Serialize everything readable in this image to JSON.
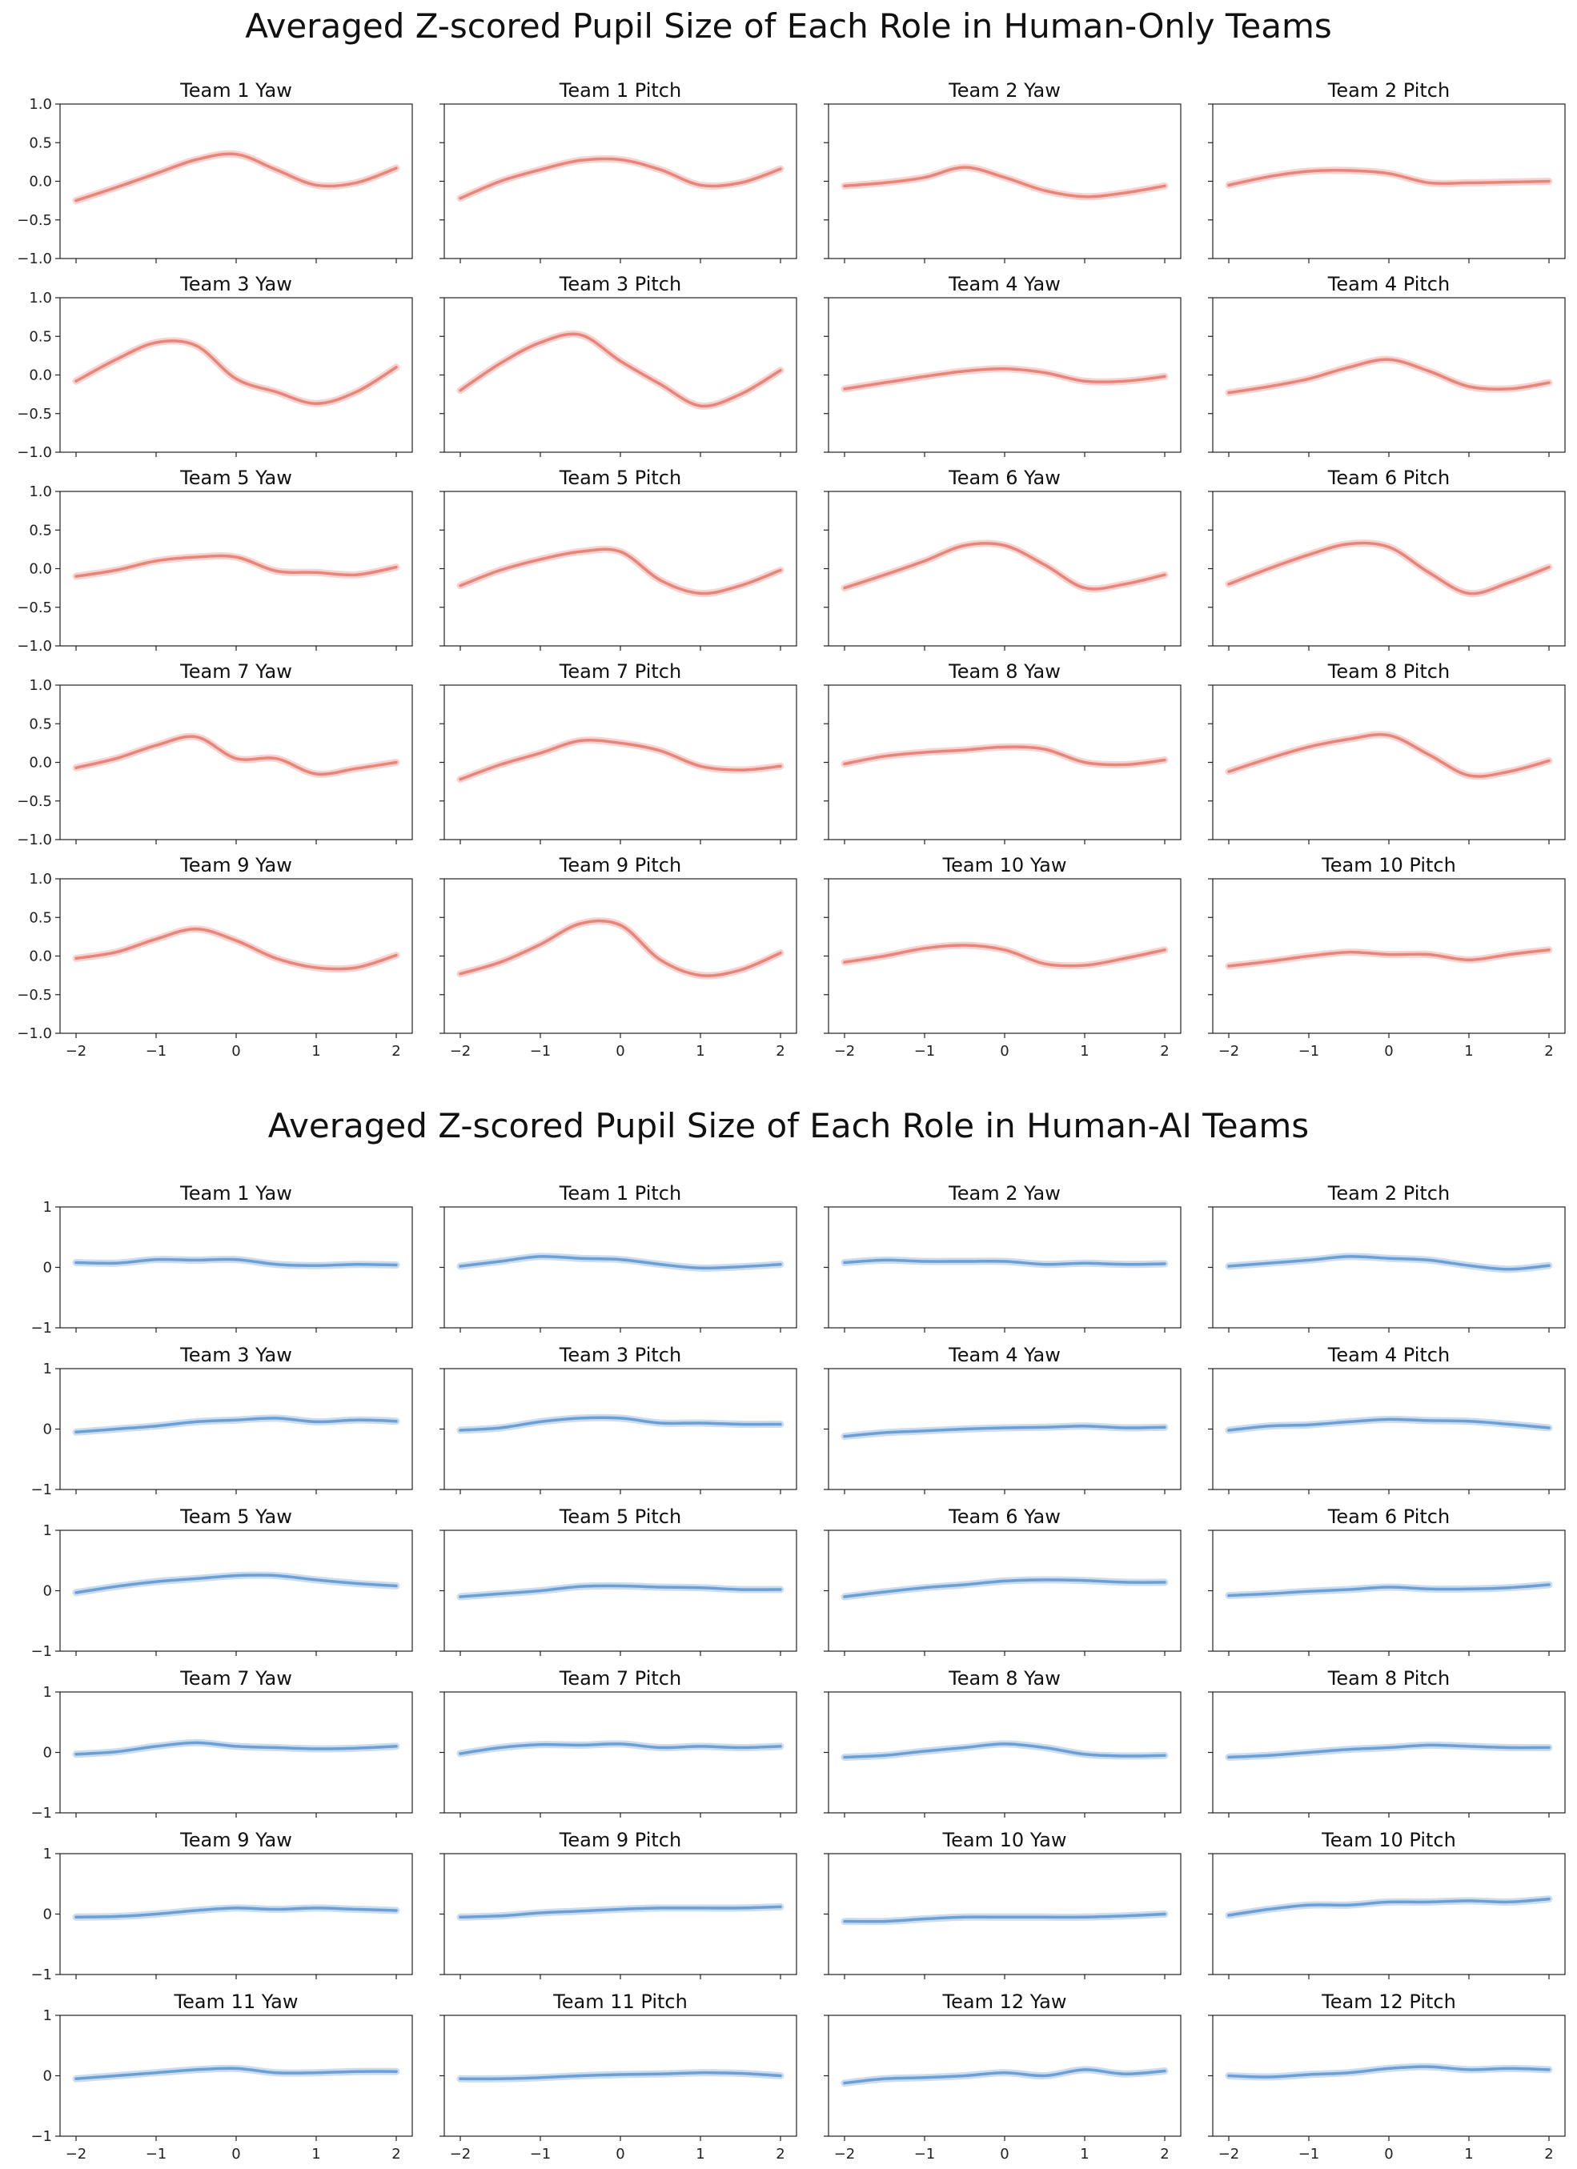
{
  "figure_titles": {
    "human_only": "Averaged Z-scored Pupil Size of Each Role in Human-Only Teams",
    "human_ai": "Averaged Z-scored Pupil Size of Each Role in Human-AI Teams"
  },
  "colors": {
    "human_only": "#e8857a",
    "human_ai": "#6c9fd4"
  },
  "chart_data": [
    {
      "type": "line",
      "group": "Human-Only Teams",
      "title": "Averaged Z-scored Pupil Size of Each Role in Human-Only Teams",
      "xlim": [
        -2.2,
        2.2
      ],
      "ylim": [
        -1.0,
        1.0
      ],
      "xticks": [
        -2,
        -1,
        0,
        1,
        2
      ],
      "xtick_labels": [
        "−2",
        "−1",
        "0",
        "1",
        "2"
      ],
      "yticks": [
        -1.0,
        -0.5,
        0.0,
        0.5,
        1.0
      ],
      "ytick_labels": [
        "−1.0",
        "−0.5",
        "0.0",
        "0.5",
        "1.0"
      ],
      "x": [
        -2.0,
        -1.5,
        -1.0,
        -0.5,
        0.0,
        0.5,
        1.0,
        1.5,
        2.0
      ],
      "panels": [
        {
          "title": "Team 1 Yaw",
          "values": [
            -0.25,
            -0.08,
            0.1,
            0.28,
            0.35,
            0.15,
            -0.05,
            -0.02,
            0.17
          ]
        },
        {
          "title": "Team 1 Pitch",
          "values": [
            -0.22,
            0.0,
            0.15,
            0.27,
            0.28,
            0.15,
            -0.05,
            -0.02,
            0.16
          ]
        },
        {
          "title": "Team 2 Yaw",
          "values": [
            -0.06,
            -0.02,
            0.05,
            0.18,
            0.05,
            -0.12,
            -0.2,
            -0.15,
            -0.06
          ]
        },
        {
          "title": "Team 2 Pitch",
          "values": [
            -0.05,
            0.06,
            0.13,
            0.14,
            0.1,
            -0.02,
            -0.02,
            -0.01,
            0.0
          ]
        },
        {
          "title": "Team 3 Yaw",
          "values": [
            -0.08,
            0.2,
            0.42,
            0.38,
            -0.05,
            -0.22,
            -0.37,
            -0.22,
            0.1
          ]
        },
        {
          "title": "Team 3 Pitch",
          "values": [
            -0.2,
            0.15,
            0.42,
            0.52,
            0.18,
            -0.12,
            -0.4,
            -0.25,
            0.06
          ]
        },
        {
          "title": "Team 4 Yaw",
          "values": [
            -0.18,
            -0.1,
            -0.02,
            0.05,
            0.08,
            0.03,
            -0.08,
            -0.08,
            -0.02
          ]
        },
        {
          "title": "Team 4 Pitch",
          "values": [
            -0.23,
            -0.15,
            -0.05,
            0.1,
            0.2,
            0.05,
            -0.15,
            -0.18,
            -0.1
          ]
        },
        {
          "title": "Team 5 Yaw",
          "values": [
            -0.1,
            -0.02,
            0.1,
            0.15,
            0.15,
            -0.03,
            -0.05,
            -0.08,
            0.02
          ]
        },
        {
          "title": "Team 5 Pitch",
          "values": [
            -0.22,
            -0.02,
            0.12,
            0.22,
            0.22,
            -0.15,
            -0.32,
            -0.22,
            -0.02
          ]
        },
        {
          "title": "Team 6 Yaw",
          "values": [
            -0.25,
            -0.08,
            0.1,
            0.3,
            0.3,
            0.05,
            -0.25,
            -0.2,
            -0.08
          ]
        },
        {
          "title": "Team 6 Pitch",
          "values": [
            -0.2,
            0.0,
            0.18,
            0.32,
            0.28,
            -0.05,
            -0.32,
            -0.18,
            0.02
          ]
        },
        {
          "title": "Team 7 Yaw",
          "values": [
            -0.07,
            0.05,
            0.22,
            0.33,
            0.05,
            0.05,
            -0.15,
            -0.08,
            0.0
          ]
        },
        {
          "title": "Team 7 Pitch",
          "values": [
            -0.22,
            -0.03,
            0.12,
            0.28,
            0.25,
            0.15,
            -0.05,
            -0.1,
            -0.05
          ]
        },
        {
          "title": "Team 8 Yaw",
          "values": [
            -0.02,
            0.08,
            0.13,
            0.16,
            0.2,
            0.17,
            0.0,
            -0.03,
            0.03
          ]
        },
        {
          "title": "Team 8 Pitch",
          "values": [
            -0.12,
            0.05,
            0.2,
            0.3,
            0.35,
            0.1,
            -0.17,
            -0.12,
            0.02
          ]
        },
        {
          "title": "Team 9 Yaw",
          "values": [
            -0.03,
            0.05,
            0.22,
            0.35,
            0.2,
            -0.03,
            -0.15,
            -0.15,
            0.01
          ]
        },
        {
          "title": "Team 9 Pitch",
          "values": [
            -0.23,
            -0.08,
            0.15,
            0.42,
            0.4,
            -0.05,
            -0.25,
            -0.18,
            0.04
          ]
        },
        {
          "title": "Team 10 Yaw",
          "values": [
            -0.08,
            0.0,
            0.1,
            0.14,
            0.08,
            -0.1,
            -0.12,
            -0.03,
            0.08
          ]
        },
        {
          "title": "Team 10 Pitch",
          "values": [
            -0.13,
            -0.07,
            0.0,
            0.05,
            0.02,
            0.02,
            -0.05,
            0.02,
            0.08
          ]
        }
      ]
    },
    {
      "type": "line",
      "group": "Human-AI Teams",
      "title": "Averaged Z-scored Pupil Size of Each Role in Human-AI Teams",
      "xlim": [
        -2.2,
        2.2
      ],
      "ylim": [
        -1,
        1
      ],
      "xticks": [
        -2,
        -1,
        0,
        1,
        2
      ],
      "xtick_labels": [
        "−2",
        "−1",
        "0",
        "1",
        "2"
      ],
      "yticks": [
        -1,
        0,
        1
      ],
      "ytick_labels": [
        "−1",
        "0",
        "1"
      ],
      "x": [
        -2.0,
        -1.5,
        -1.0,
        -0.5,
        0.0,
        0.5,
        1.0,
        1.5,
        2.0
      ],
      "panels": [
        {
          "title": "Team 1 Yaw",
          "values": [
            0.08,
            0.07,
            0.13,
            0.12,
            0.13,
            0.05,
            0.03,
            0.05,
            0.04
          ]
        },
        {
          "title": "Team 1 Pitch",
          "values": [
            0.02,
            0.1,
            0.18,
            0.15,
            0.13,
            0.05,
            -0.01,
            0.01,
            0.05
          ]
        },
        {
          "title": "Team 2 Yaw",
          "values": [
            0.08,
            0.12,
            0.1,
            0.1,
            0.1,
            0.05,
            0.07,
            0.05,
            0.06
          ]
        },
        {
          "title": "Team 2 Pitch",
          "values": [
            0.02,
            0.07,
            0.12,
            0.18,
            0.15,
            0.12,
            0.03,
            -0.03,
            0.03
          ]
        },
        {
          "title": "Team 3 Yaw",
          "values": [
            -0.05,
            0.0,
            0.05,
            0.12,
            0.15,
            0.18,
            0.12,
            0.15,
            0.13
          ]
        },
        {
          "title": "Team 3 Pitch",
          "values": [
            -0.02,
            0.02,
            0.12,
            0.18,
            0.18,
            0.1,
            0.1,
            0.08,
            0.08
          ]
        },
        {
          "title": "Team 4 Yaw",
          "values": [
            -0.12,
            -0.06,
            -0.03,
            0.0,
            0.02,
            0.03,
            0.05,
            0.02,
            0.03
          ]
        },
        {
          "title": "Team 4 Pitch",
          "values": [
            -0.02,
            0.05,
            0.07,
            0.12,
            0.16,
            0.14,
            0.13,
            0.08,
            0.02
          ]
        },
        {
          "title": "Team 5 Yaw",
          "values": [
            -0.03,
            0.07,
            0.15,
            0.2,
            0.25,
            0.25,
            0.18,
            0.12,
            0.08
          ]
        },
        {
          "title": "Team 5 Pitch",
          "values": [
            -0.1,
            -0.05,
            0.0,
            0.07,
            0.08,
            0.06,
            0.05,
            0.02,
            0.02
          ]
        },
        {
          "title": "Team 6 Yaw",
          "values": [
            -0.1,
            -0.02,
            0.05,
            0.1,
            0.16,
            0.18,
            0.17,
            0.14,
            0.14
          ]
        },
        {
          "title": "Team 6 Pitch",
          "values": [
            -0.08,
            -0.05,
            -0.01,
            0.02,
            0.06,
            0.03,
            0.03,
            0.05,
            0.1
          ]
        },
        {
          "title": "Team 7 Yaw",
          "values": [
            -0.03,
            0.01,
            0.1,
            0.16,
            0.1,
            0.08,
            0.06,
            0.07,
            0.1
          ]
        },
        {
          "title": "Team 7 Pitch",
          "values": [
            -0.02,
            0.08,
            0.13,
            0.12,
            0.14,
            0.08,
            0.1,
            0.08,
            0.1
          ]
        },
        {
          "title": "Team 8 Yaw",
          "values": [
            -0.08,
            -0.05,
            0.02,
            0.08,
            0.14,
            0.08,
            -0.03,
            -0.06,
            -0.05
          ]
        },
        {
          "title": "Team 8 Pitch",
          "values": [
            -0.08,
            -0.05,
            0.0,
            0.05,
            0.08,
            0.12,
            0.1,
            0.08,
            0.08
          ]
        },
        {
          "title": "Team 9 Yaw",
          "values": [
            -0.05,
            -0.04,
            0.0,
            0.06,
            0.1,
            0.08,
            0.1,
            0.08,
            0.06
          ]
        },
        {
          "title": "Team 9 Pitch",
          "values": [
            -0.05,
            -0.03,
            0.02,
            0.05,
            0.08,
            0.1,
            0.1,
            0.1,
            0.12
          ]
        },
        {
          "title": "Team 10 Yaw",
          "values": [
            -0.12,
            -0.12,
            -0.08,
            -0.05,
            -0.05,
            -0.05,
            -0.05,
            -0.03,
            0.0
          ]
        },
        {
          "title": "Team 10 Pitch",
          "values": [
            -0.02,
            0.08,
            0.15,
            0.15,
            0.2,
            0.2,
            0.22,
            0.2,
            0.25
          ]
        },
        {
          "title": "Team 11 Yaw",
          "values": [
            -0.05,
            0.0,
            0.05,
            0.1,
            0.12,
            0.05,
            0.05,
            0.07,
            0.07
          ]
        },
        {
          "title": "Team 11 Pitch",
          "values": [
            -0.05,
            -0.05,
            -0.03,
            0.0,
            0.02,
            0.03,
            0.05,
            0.04,
            0.0
          ]
        },
        {
          "title": "Team 12 Yaw",
          "values": [
            -0.12,
            -0.05,
            -0.03,
            0.0,
            0.05,
            0.0,
            0.1,
            0.03,
            0.08
          ]
        },
        {
          "title": "Team 12 Pitch",
          "values": [
            0.0,
            -0.02,
            0.02,
            0.05,
            0.12,
            0.15,
            0.1,
            0.12,
            0.1
          ]
        }
      ]
    }
  ]
}
